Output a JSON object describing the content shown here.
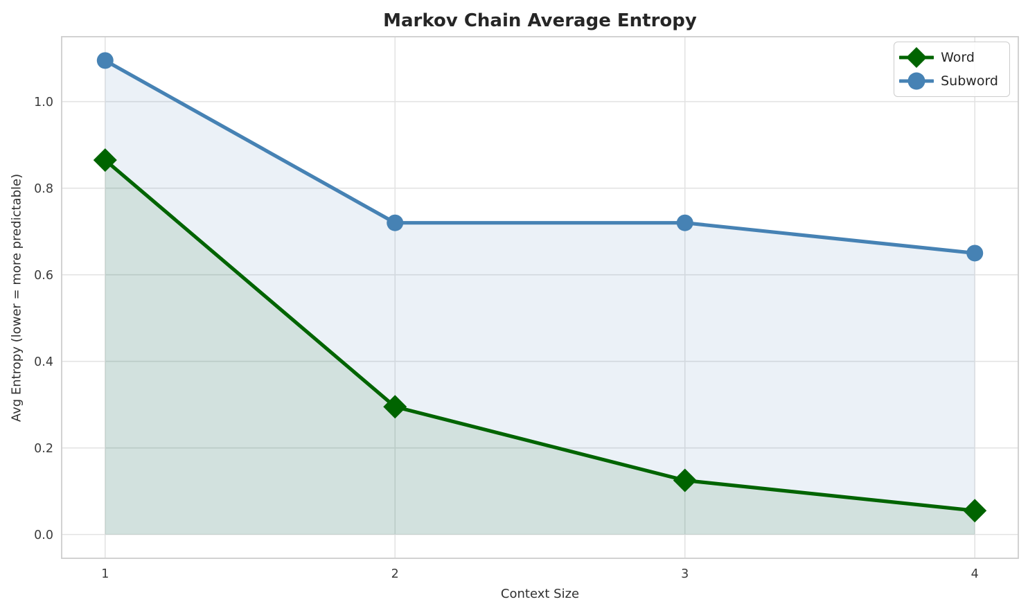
{
  "chart_data": {
    "type": "line",
    "title": "Markov Chain Average Entropy",
    "xlabel": "Context Size",
    "ylabel": "Avg Entropy (lower = more predictable)",
    "x": [
      1,
      2,
      3,
      4
    ],
    "series": [
      {
        "name": "Word",
        "values": [
          0.865,
          0.295,
          0.125,
          0.055
        ],
        "color": "#006400",
        "marker": "diamond",
        "fill_to_zero": true
      },
      {
        "name": "Subword",
        "values": [
          1.095,
          0.72,
          0.72,
          0.65
        ],
        "color": "#4682B4",
        "marker": "circle",
        "fill_to_zero": true
      }
    ],
    "xticks": [
      1,
      2,
      3,
      4
    ],
    "yticks": [
      0.0,
      0.2,
      0.4,
      0.6,
      0.8,
      1.0
    ],
    "xlim": [
      0.85,
      4.15
    ],
    "ylim": [
      -0.055,
      1.15
    ],
    "grid": true,
    "legend_position": "upper right",
    "fill_alpha": 0.11
  },
  "colors": {
    "word_series": "#006400",
    "subword_series": "#4682B4",
    "grid": "#e3e3e3",
    "spine": "#cdcdcd",
    "title_text": "#262626",
    "tick_text": "#3b3b3b",
    "legend_border": "#cccccc"
  }
}
